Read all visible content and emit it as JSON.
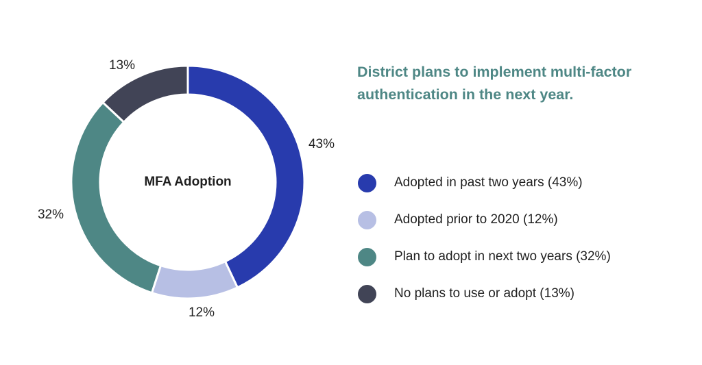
{
  "chart_data": {
    "type": "pie",
    "variant": "donut",
    "title": "District plans to implement multi-factor authentication in the next year.",
    "center_label": "MFA Adoption",
    "categories": [
      "Adopted in past two years",
      "Adopted prior to 2020",
      "Plan to adopt in next two years",
      "No plans to use or adopt"
    ],
    "values": [
      43,
      12,
      32,
      13
    ],
    "colors": [
      "#283BAD",
      "#B7BFE4",
      "#4E8785",
      "#414456"
    ],
    "start_angle": "12 o'clock",
    "direction": "clockwise",
    "legend_position": "right"
  },
  "title": "District plans to implement multi-factor authentication in the next year.",
  "title_color": "#4E8785",
  "center_label": "MFA Adoption",
  "slice_labels": [
    "43%",
    "12%",
    "32%",
    "13%"
  ],
  "legend": [
    {
      "label": "Adopted in past two years (43%)",
      "color": "#283BAD"
    },
    {
      "label": "Adopted prior to 2020 (12%)",
      "color": "#B7BFE4"
    },
    {
      "label": "Plan to adopt in next two years (32%)",
      "color": "#4E8785"
    },
    {
      "label": "No plans to use or adopt (13%)",
      "color": "#414456"
    }
  ]
}
